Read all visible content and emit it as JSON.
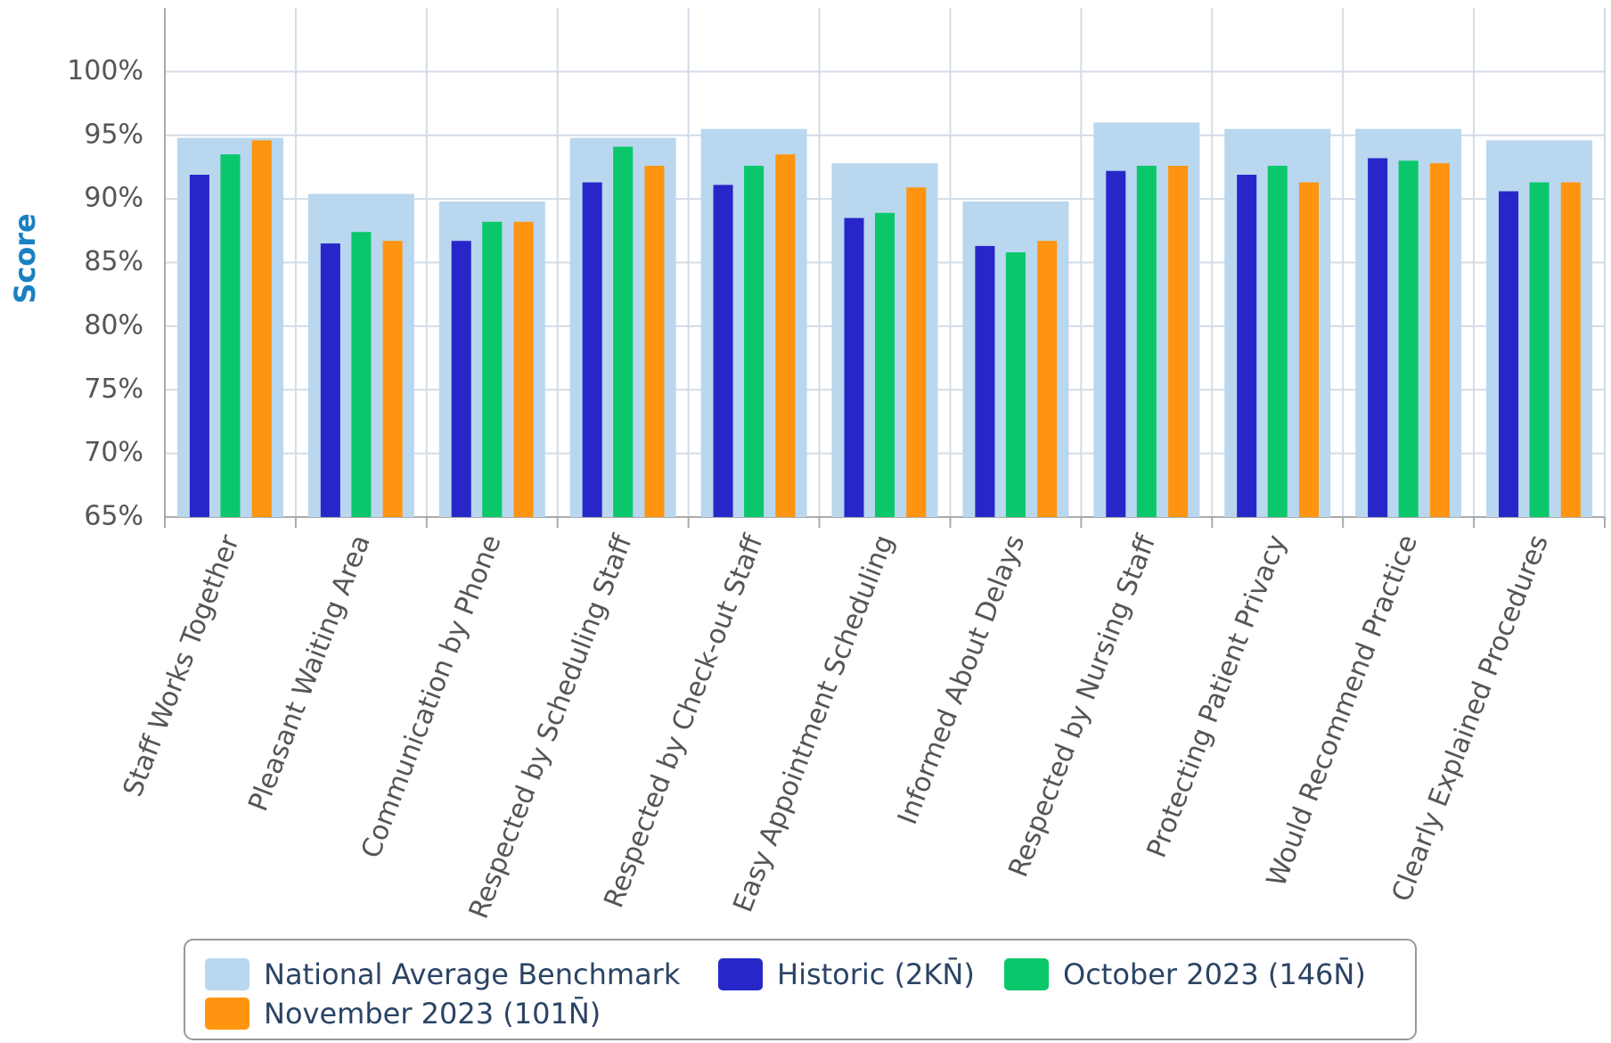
{
  "chart_data": {
    "type": "bar",
    "ylabel": "Score",
    "categories": [
      "Staff Works Together",
      "Pleasant Waiting Area",
      "Communication by Phone",
      "Respected by Scheduling Staff",
      "Respected by Check-out Staff",
      "Easy Appointment Scheduling",
      "Informed About Delays",
      "Respected by Nursing Staff",
      "Protecting Patient Privacy",
      "Would Recommend Practice",
      "Clearly Explained Procedures"
    ],
    "series": [
      {
        "name": "National Average Benchmark",
        "color": "#b9d7ee",
        "values": [
          94.8,
          90.4,
          89.8,
          94.8,
          95.5,
          92.8,
          89.8,
          96.0,
          95.5,
          95.5,
          94.6
        ]
      },
      {
        "name": "Historic (2KN̄)",
        "color": "#2727c9",
        "values": [
          91.9,
          86.5,
          86.7,
          91.3,
          91.1,
          88.5,
          86.3,
          92.2,
          91.9,
          93.2,
          90.6
        ]
      },
      {
        "name": "October 2023 (146N̄)",
        "color": "#0bc76b",
        "values": [
          93.5,
          87.4,
          88.2,
          94.1,
          92.6,
          88.9,
          85.8,
          92.6,
          92.6,
          93.0,
          91.3
        ]
      },
      {
        "name": "November 2023 (101N̄)",
        "color": "#ff9410",
        "values": [
          94.6,
          86.7,
          88.2,
          92.6,
          93.5,
          90.9,
          86.7,
          92.6,
          91.3,
          92.8,
          91.3
        ]
      }
    ],
    "ylim": [
      65,
      105
    ],
    "yticks": [
      {
        "value": 65,
        "label": "65%"
      },
      {
        "value": 70,
        "label": "70%"
      },
      {
        "value": 75,
        "label": "75%"
      },
      {
        "value": 80,
        "label": "80%"
      },
      {
        "value": 85,
        "label": "85%"
      },
      {
        "value": 90,
        "label": "90%"
      },
      {
        "value": 95,
        "label": "95%"
      },
      {
        "value": 100,
        "label": "100%"
      }
    ],
    "grid": true
  }
}
